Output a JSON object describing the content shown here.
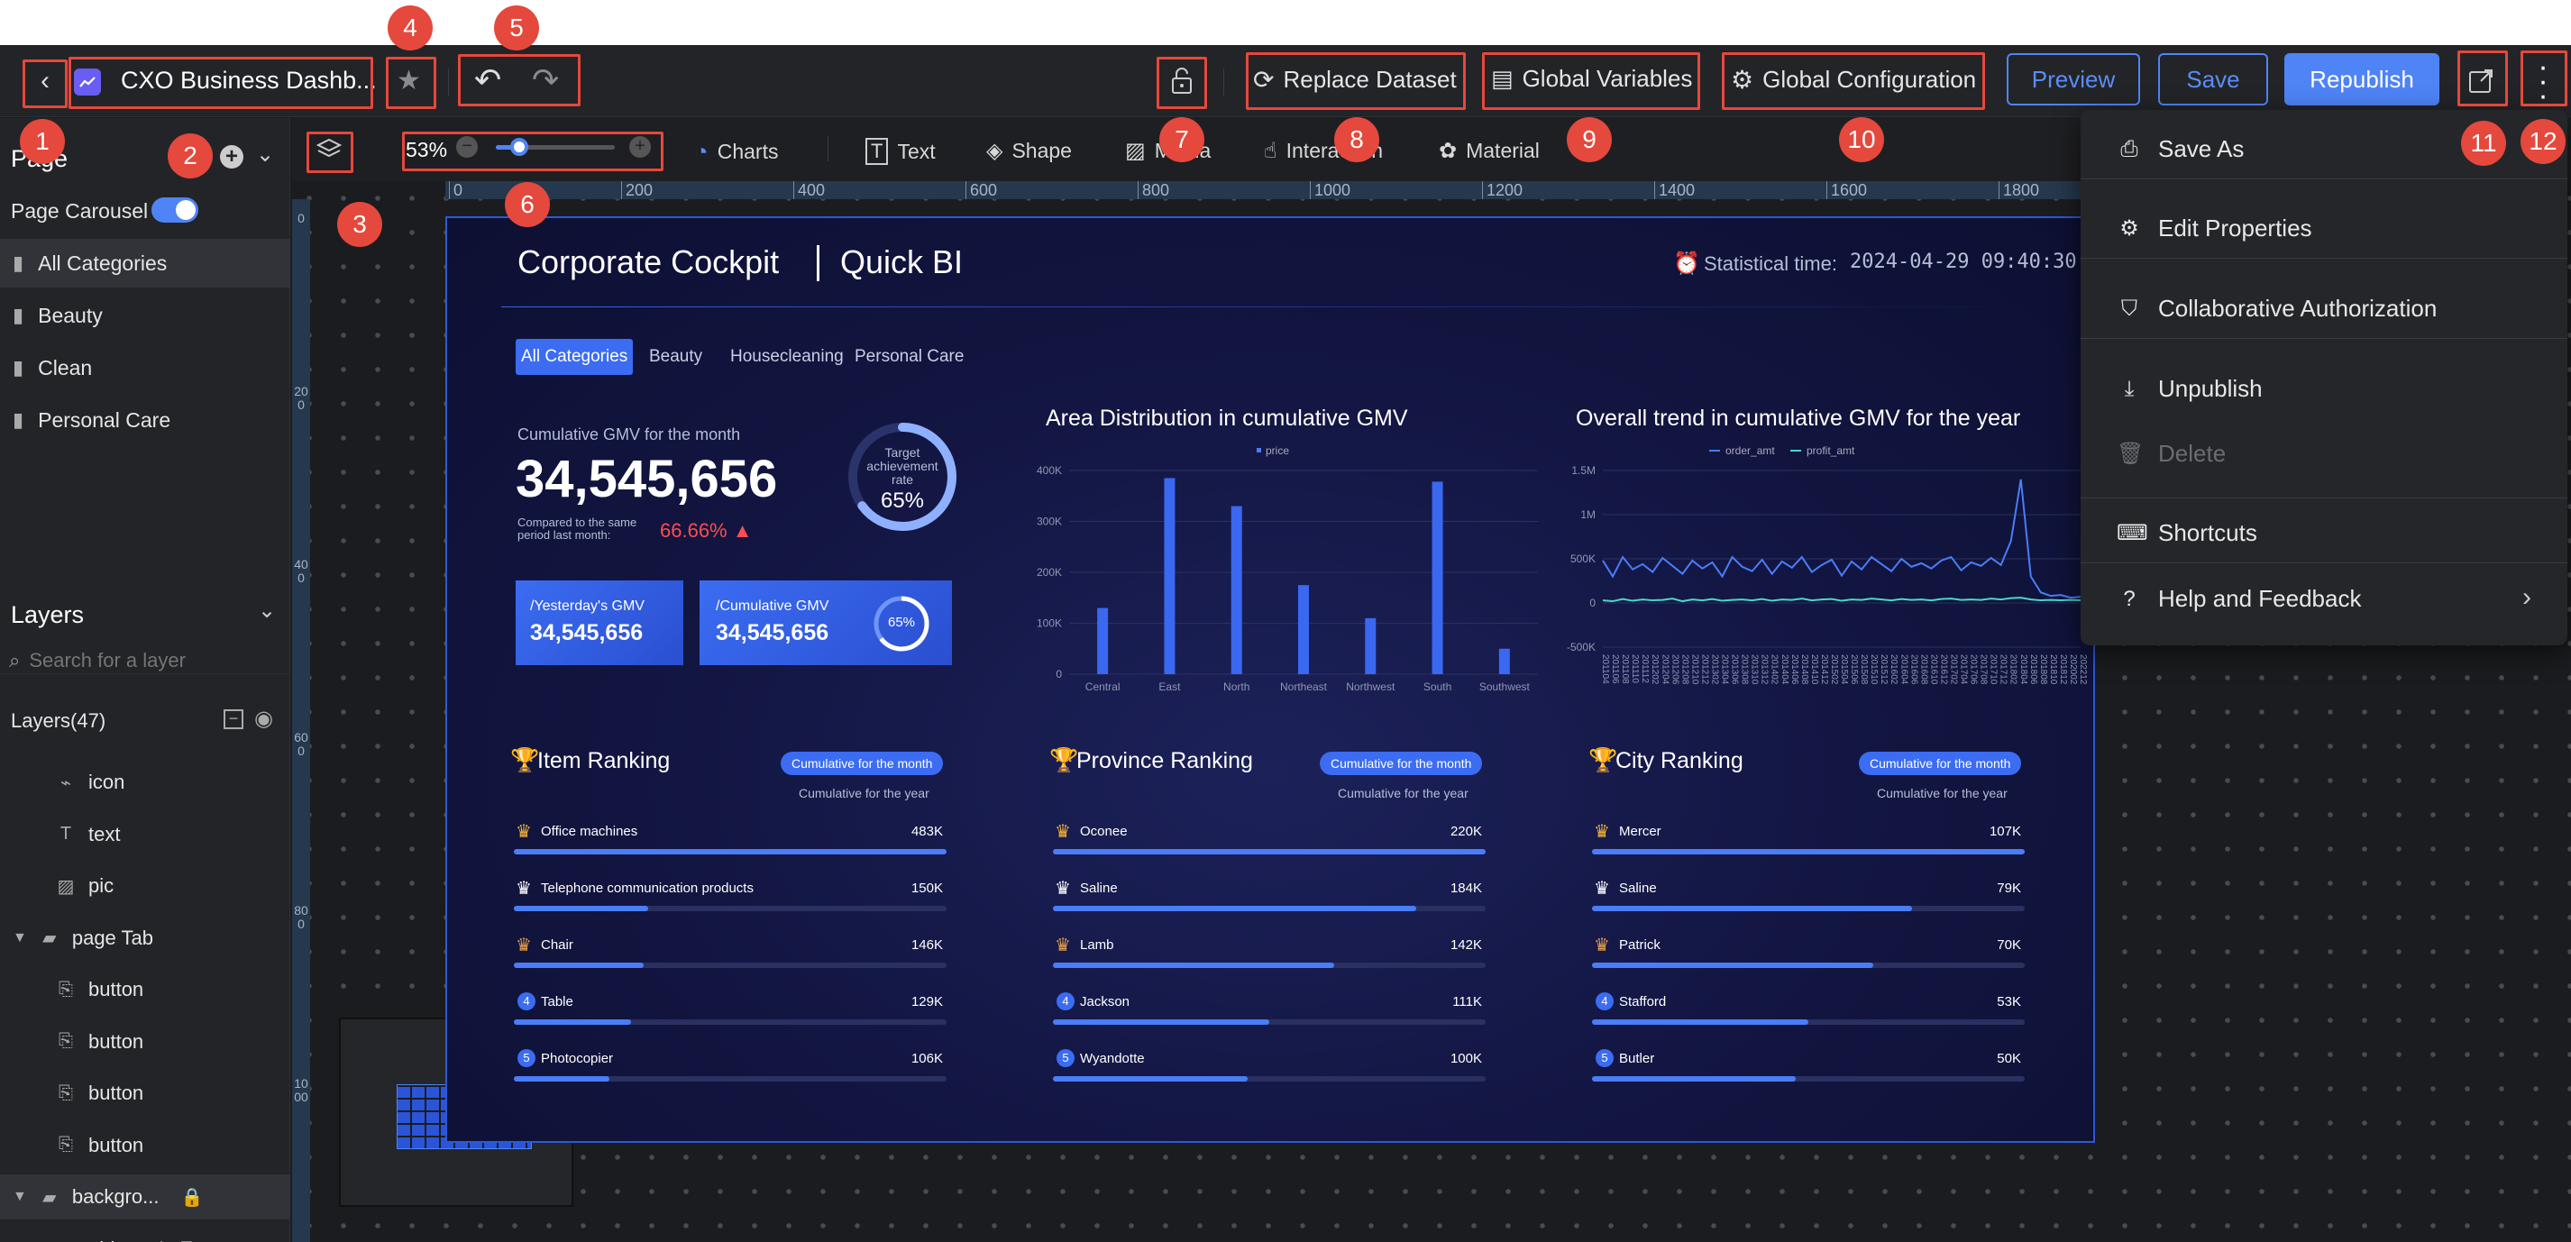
{
  "header": {
    "back_icon": "chevron-left-icon",
    "dashboard_title": "CXO Business Dashb...",
    "replace_dataset": "Replace Dataset",
    "global_variables": "Global Variables",
    "global_configuration": "Global Configuration",
    "preview": "Preview",
    "save": "Save",
    "republish": "Republish",
    "accent": "#4f84f6"
  },
  "badges": [
    "1",
    "2",
    "3",
    "4",
    "5",
    "6",
    "7",
    "8",
    "9",
    "10",
    "11",
    "12"
  ],
  "toolbar": {
    "zoom": "53%",
    "zoom_level": 0.2,
    "items": [
      "Charts",
      "Text",
      "Shape",
      "Media",
      "Interaction",
      "Material"
    ]
  },
  "ruler": {
    "h": [
      "0",
      "200",
      "400",
      "600",
      "800",
      "1000",
      "1200",
      "1400",
      "1600",
      "1800"
    ],
    "v": [
      "0",
      "200",
      "400",
      "600",
      "800",
      "1000"
    ]
  },
  "left": {
    "page_title": "Page",
    "carousel_label": "Page Carousel",
    "pages": [
      "All Categories",
      "Beauty",
      "Clean",
      "Personal Care"
    ],
    "layers_title": "Layers",
    "search_placeholder": "Search for a layer",
    "layers_count": "Layers(47)",
    "layers": [
      {
        "label": "icon",
        "icon": "chart-icon",
        "indent": 1
      },
      {
        "label": "text",
        "icon": "text-icon",
        "indent": 1
      },
      {
        "label": "pic",
        "icon": "image-icon",
        "indent": 1
      },
      {
        "label": "page Tab",
        "icon": "folder-icon",
        "indent": 0
      },
      {
        "label": "button",
        "icon": "button-icon",
        "indent": 1
      },
      {
        "label": "button",
        "icon": "button-icon",
        "indent": 1
      },
      {
        "label": "button",
        "icon": "button-icon",
        "indent": 1
      },
      {
        "label": "button",
        "icon": "button-icon",
        "indent": 1
      },
      {
        "label": "backgro...",
        "icon": "folder-icon",
        "indent": 0
      },
      {
        "label": "object-gLxE",
        "icon": "image-icon",
        "indent": 1
      }
    ]
  },
  "menu": {
    "items": [
      {
        "label": "Save As",
        "icon": "save-as-icon",
        "disabled": false
      },
      {
        "label": "Edit Properties",
        "icon": "edit-properties-icon",
        "disabled": false
      },
      {
        "label": "Collaborative Authorization",
        "icon": "shield-icon",
        "disabled": false
      },
      {
        "label": "Unpublish",
        "icon": "unpublish-icon",
        "disabled": false
      },
      {
        "label": "Delete",
        "icon": "trash-icon",
        "disabled": true
      },
      {
        "label": "Shortcuts",
        "icon": "keyboard-icon",
        "disabled": false
      },
      {
        "label": "Help and Feedback",
        "icon": "help-icon",
        "disabled": false
      }
    ]
  },
  "dashboard": {
    "title": "Corporate Cockpit",
    "brand": "Quick BI",
    "stat_label": "Statistical time:",
    "stat_time": "2024-04-29 09:40:30",
    "tabs": [
      "All Categories",
      "Beauty",
      "Housecleaning",
      "Personal Care"
    ],
    "gmv_label": "Cumulative GMV for the month",
    "gmv_value": "34,545,656",
    "compare_label_1": "Compared to the same",
    "compare_label_2": "period last month:",
    "compare_value": "66.66%",
    "target_label_1": "Target",
    "target_label_2": "achievement",
    "target_label_3": "rate",
    "target_value": "65%",
    "target_fraction": 0.65,
    "card1_label": "/Yesterday's GMV",
    "card1_value": "34,545,656",
    "card2_label": "/Cumulative GMV",
    "card2_value": "34,545,656",
    "card2_ring": "65%",
    "rank_tag": "Cumulative for the month",
    "rank_sub": "Cumulative for the year",
    "rankings": [
      {
        "title": "Item Ranking",
        "rows": [
          {
            "rank": "1",
            "name": "Office machines",
            "value": "483K",
            "pct": 1.0
          },
          {
            "rank": "2",
            "name": "Telephone communication products",
            "value": "150K",
            "pct": 0.31
          },
          {
            "rank": "3",
            "name": "Chair",
            "value": "146K",
            "pct": 0.3
          },
          {
            "rank": "4",
            "name": "Table",
            "value": "129K",
            "pct": 0.27
          },
          {
            "rank": "5",
            "name": "Photocopier",
            "value": "106K",
            "pct": 0.22
          }
        ]
      },
      {
        "title": "Province Ranking",
        "rows": [
          {
            "rank": "1",
            "name": "Oconee",
            "value": "220K",
            "pct": 1.0
          },
          {
            "rank": "2",
            "name": "Saline",
            "value": "184K",
            "pct": 0.84
          },
          {
            "rank": "3",
            "name": "Lamb",
            "value": "142K",
            "pct": 0.65
          },
          {
            "rank": "4",
            "name": "Jackson",
            "value": "111K",
            "pct": 0.5
          },
          {
            "rank": "5",
            "name": "Wyandotte",
            "value": "100K",
            "pct": 0.45
          }
        ]
      },
      {
        "title": "City Ranking",
        "rows": [
          {
            "rank": "1",
            "name": "Mercer",
            "value": "107K",
            "pct": 1.0
          },
          {
            "rank": "2",
            "name": "Saline",
            "value": "79K",
            "pct": 0.74
          },
          {
            "rank": "3",
            "name": "Patrick",
            "value": "70K",
            "pct": 0.65
          },
          {
            "rank": "4",
            "name": "Stafford",
            "value": "53K",
            "pct": 0.5
          },
          {
            "rank": "5",
            "name": "Butler",
            "value": "50K",
            "pct": 0.47
          }
        ]
      }
    ]
  },
  "chart_data": [
    {
      "type": "bar",
      "title": "Area Distribution in cumulative GMV",
      "legend": "price",
      "categories": [
        "Central",
        "East",
        "North",
        "Northeast",
        "Northwest",
        "South",
        "Southwest"
      ],
      "values": [
        130,
        385,
        330,
        175,
        110,
        378,
        50
      ],
      "ylim": [
        0,
        400
      ],
      "yticks": [
        "0",
        "100K",
        "200K",
        "300K",
        "400K"
      ]
    },
    {
      "type": "line",
      "title": "Overall trend in cumulative GMV for the year",
      "legend": [
        "order_amt",
        "profit_amt"
      ],
      "ylim": [
        -500,
        1500
      ],
      "yticks": [
        "-500K",
        "0",
        "500K",
        "1M",
        "1.5M"
      ],
      "x": [
        "201104",
        "201106",
        "201108",
        "201110",
        "201112",
        "201202",
        "201204",
        "201206",
        "201208",
        "201210",
        "201212",
        "201302",
        "201304",
        "201306",
        "201308",
        "201310",
        "201312",
        "201402",
        "201404",
        "201406",
        "201408",
        "201410",
        "201412",
        "201502",
        "201504",
        "201506",
        "201508",
        "201510",
        "201512",
        "201602",
        "201604",
        "201606",
        "201608",
        "201610",
        "201612",
        "201702",
        "201704",
        "201706",
        "201708",
        "201710",
        "201712",
        "201802",
        "201804",
        "201806",
        "201808",
        "201810",
        "201812",
        "202002",
        "202212"
      ],
      "series": [
        {
          "name": "order_amt",
          "values": [
            480,
            300,
            520,
            380,
            440,
            350,
            510,
            420,
            330,
            480,
            390,
            460,
            300,
            520,
            410,
            360,
            490,
            330,
            470,
            400,
            520,
            350,
            430,
            490,
            310,
            470,
            380,
            520,
            440,
            360,
            500,
            410,
            450,
            390,
            480,
            520,
            370,
            460,
            420,
            510,
            430,
            700,
            1400,
            300,
            120,
            80,
            90,
            60,
            70
          ]
        },
        {
          "name": "profit_amt",
          "values": [
            30,
            20,
            45,
            25,
            40,
            30,
            35,
            50,
            20,
            40,
            30,
            45,
            25,
            35,
            40,
            30,
            45,
            25,
            40,
            35,
            50,
            30,
            40,
            45,
            25,
            40,
            35,
            50,
            40,
            30,
            45,
            35,
            40,
            30,
            45,
            50,
            35,
            40,
            35,
            50,
            40,
            55,
            60,
            40,
            30,
            35,
            30,
            35,
            30
          ]
        }
      ]
    }
  ]
}
